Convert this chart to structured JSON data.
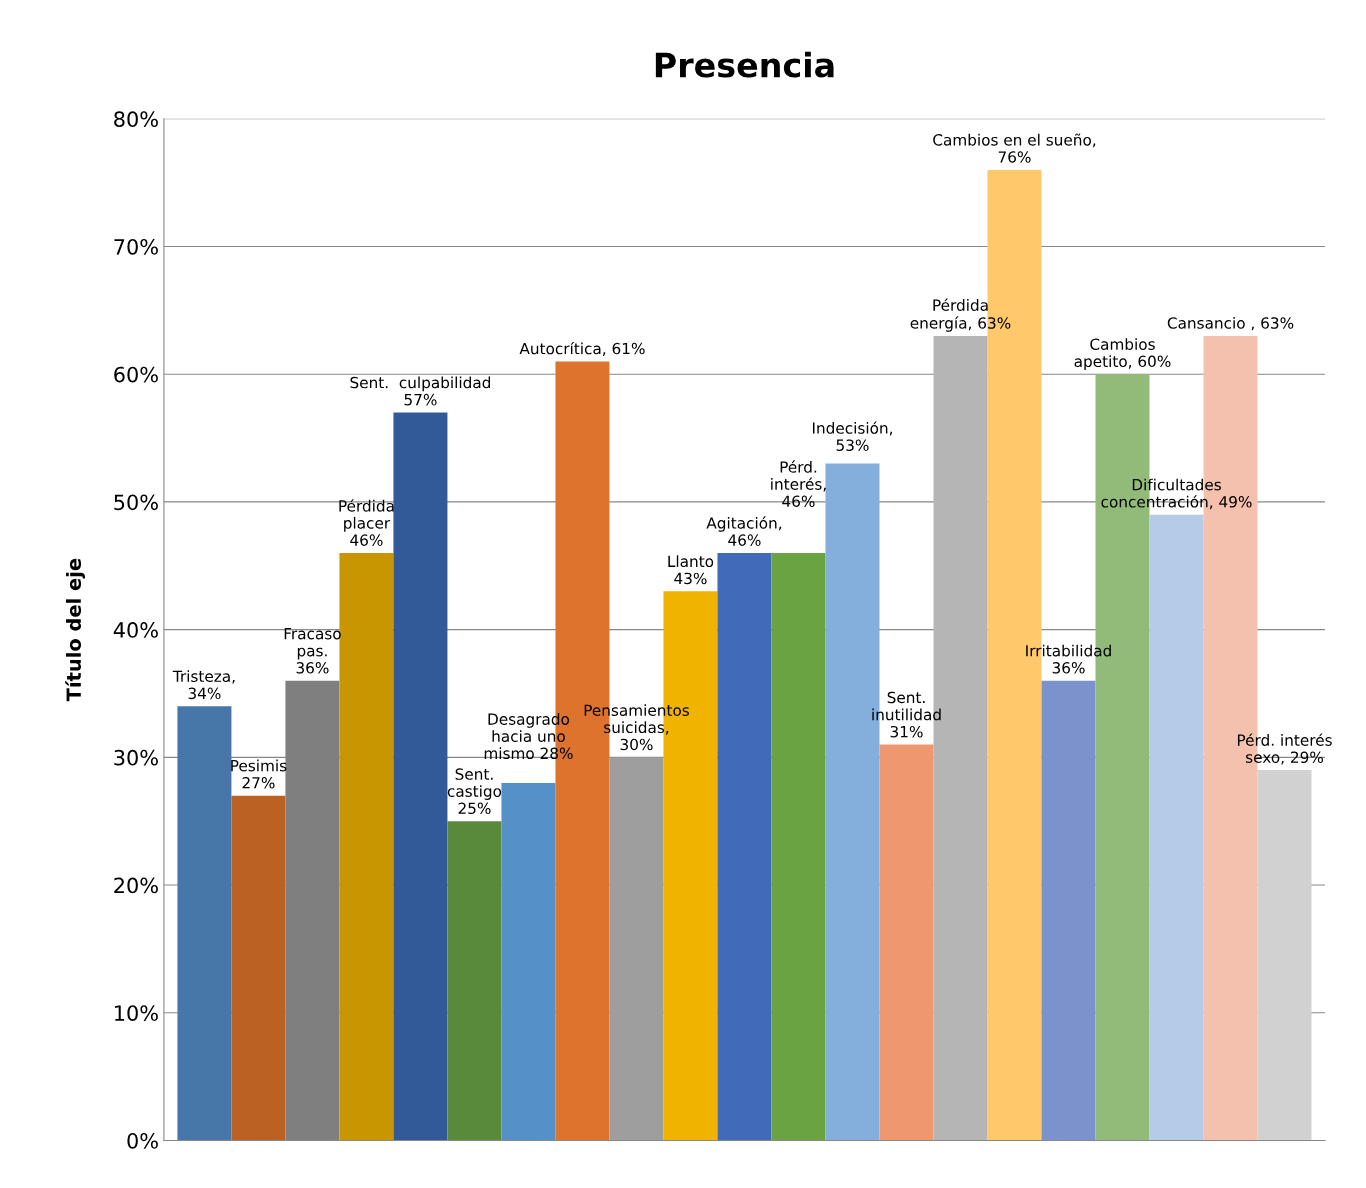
{
  "chart_data": {
    "type": "bar",
    "title": "Presencia",
    "ylabel": "Título del eje",
    "categories": [
      null,
      null,
      null,
      null,
      null,
      null,
      null,
      null,
      null,
      null,
      null,
      null,
      null,
      null,
      null,
      null,
      null,
      null,
      null,
      null,
      null
    ],
    "values": [
      34,
      27,
      36,
      46,
      57,
      25,
      28,
      61,
      30,
      43,
      46,
      46,
      53,
      31,
      63,
      76,
      36,
      60,
      49,
      63,
      29
    ],
    "colors": [
      "#4677a8",
      "#bc6124",
      "#7f7f7f",
      "#c89600",
      "#335a98",
      "#588a39",
      "#5591c8",
      "#de732e",
      "#9e9e9e",
      "#efb300",
      "#416bb8",
      "#69a342",
      "#84afdc",
      "#ef9870",
      "#b5b5b5",
      "#ffc96b",
      "#7b92cc",
      "#92bb79",
      "#b6cbe8",
      "#f4c1ae",
      "#d1d1d1"
    ],
    "value_labels": [
      "Tristeza,\n34%",
      "Pesimis\n27%",
      "Fracaso\npas.\n36%",
      "Pérdida\nplacer\n46%",
      "Sent.  culpabilidad\n57%",
      "Sent.\ncastigo\n25%",
      "Desagrado\nhacia uno\nmismo 28%",
      "Autocrítica, 61%",
      "Pensamientos\nsuicidas,\n30%",
      "Llanto\n43%",
      "Agitación,\n46%",
      "Pérd.\ninterés,\n46%",
      "Indecisión,\n53%",
      "Sent.\ninutilidad\n31%",
      "Pérdida\nenergía, 63%",
      "Cambios en el sueño,\n76%",
      "Irritabilidad\n36%",
      "Cambios\napetito, 60%",
      "Dificultades\nconcentración, 49%",
      "Cansancio , 63%",
      "Pérd. interés\nsexo, 29%"
    ],
    "ylim": [
      0,
      80
    ],
    "yticks": [
      {
        "value": 0,
        "label": "0%"
      },
      {
        "value": 10,
        "label": "10%"
      },
      {
        "value": 20,
        "label": "20%"
      },
      {
        "value": 30,
        "label": "30%"
      },
      {
        "value": 40,
        "label": "40%"
      },
      {
        "value": 50,
        "label": "50%"
      },
      {
        "value": 60,
        "label": "60%"
      },
      {
        "value": 70,
        "label": "70%"
      },
      {
        "value": 80,
        "label": "80%"
      }
    ],
    "grid": "y",
    "tick_labels": "y"
  }
}
